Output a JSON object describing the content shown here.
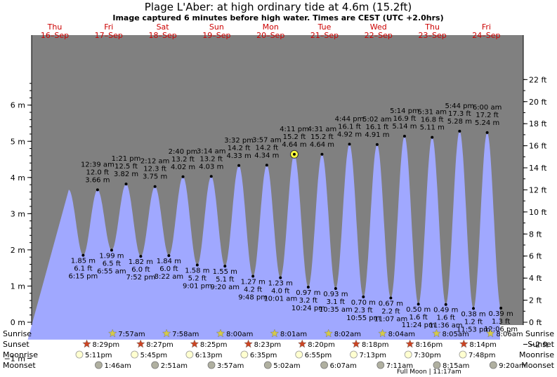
{
  "title": "Plage L'Aber: at high  ordinary tide at 4.6m (15.2ft)",
  "subtitle": "Image captured 6 minutes before high water. Times are CEST (UTC +2.0hrs)",
  "colors": {
    "day": "#ffffc0",
    "night": "#808080",
    "tide": "#a0a8ff",
    "day_label": "#cc0000",
    "now_marker": "#ffff40",
    "sun_star": "#d4c94a",
    "sunset_star": "#cc4422",
    "moon": "#ffffd0",
    "moonset": "#b0b0a0"
  },
  "chart_data": {
    "type": "area",
    "title": "Plage L'Aber: at high  ordinary tide at 4.6m (15.2ft)",
    "ylabel_left": "m",
    "ylabel_right": "ft",
    "ylim_m": [
      -1.2,
      6.8
    ],
    "yticks_m": [
      "−1 m",
      "0 m",
      "1 m",
      "2 m",
      "3 m",
      "4 m",
      "5 m",
      "6 m"
    ],
    "yticks_ft": [
      "−2 ft",
      "0 ft",
      "2 ft",
      "4 ft",
      "6 ft",
      "8 ft",
      "10 ft",
      "12 ft",
      "14 ft",
      "16 ft",
      "18 ft",
      "20 ft",
      "22 ft"
    ],
    "days": [
      {
        "dow": "Thu",
        "date": "16–Sep"
      },
      {
        "dow": "Fri",
        "date": "17–Sep"
      },
      {
        "dow": "Sat",
        "date": "18–Sep"
      },
      {
        "dow": "Sun",
        "date": "19–Sep"
      },
      {
        "dow": "Mon",
        "date": "20–Sep"
      },
      {
        "dow": "Tue",
        "date": "21–Sep"
      },
      {
        "dow": "Wed",
        "date": "22–Sep"
      },
      {
        "dow": "Thu",
        "date": "23–Sep"
      },
      {
        "dow": "Fri",
        "date": "24–Sep"
      }
    ],
    "tides": [
      {
        "kind": "low",
        "m": 1.85,
        "ft": "6.1 ft",
        "time": "6:15 pm",
        "label": "1.85 m"
      },
      {
        "kind": "high",
        "m": 3.66,
        "ft": "12.0 ft",
        "time": "12:39 am",
        "label": "3.66 m"
      },
      {
        "kind": "low",
        "m": 1.99,
        "ft": "6.5 ft",
        "time": "6:55 am",
        "label": "1.99 m"
      },
      {
        "kind": "high",
        "m": 3.82,
        "ft": "12.5 ft",
        "time": "1:21 pm",
        "label": "3.82 m"
      },
      {
        "kind": "low",
        "m": 1.82,
        "ft": "6.0 ft",
        "time": "7:52 pm",
        "label": "1.82 m"
      },
      {
        "kind": "high",
        "m": 3.75,
        "ft": "12.3 ft",
        "time": "2:12 am",
        "label": "3.75 m"
      },
      {
        "kind": "low",
        "m": 1.84,
        "ft": "6.0 ft",
        "time": "8:22 am",
        "label": "1.84 m"
      },
      {
        "kind": "high",
        "m": 4.02,
        "ft": "13.2 ft",
        "time": "2:40 pm",
        "label": "4.02 m"
      },
      {
        "kind": "low",
        "m": 1.58,
        "ft": "5.2 ft",
        "time": "9:01 pm",
        "label": "1.58 m"
      },
      {
        "kind": "high",
        "m": 4.03,
        "ft": "13.2 ft",
        "time": "3:14 am",
        "label": "4.03 m"
      },
      {
        "kind": "low",
        "m": 1.55,
        "ft": "5.1 ft",
        "time": "9:20 am",
        "label": "1.55 m"
      },
      {
        "kind": "high",
        "m": 4.33,
        "ft": "14.2 ft",
        "time": "3:32 pm",
        "label": "4.33 m"
      },
      {
        "kind": "low",
        "m": 1.27,
        "ft": "4.2 ft",
        "time": "9:48 pm",
        "label": "1.27 m"
      },
      {
        "kind": "high",
        "m": 4.34,
        "ft": "14.2 ft",
        "time": "3:57 am",
        "label": "4.34 m"
      },
      {
        "kind": "low",
        "m": 1.23,
        "ft": "4.0 ft",
        "time": "10:01 am",
        "label": "1.23 m"
      },
      {
        "kind": "high",
        "m": 4.64,
        "ft": "15.2 ft",
        "time": "4:11 pm",
        "label": "4.64 m"
      },
      {
        "kind": "low",
        "m": 0.97,
        "ft": "3.2 ft",
        "time": "10:24 pm",
        "label": "0.97 m"
      },
      {
        "kind": "high",
        "m": 4.64,
        "ft": "15.2 ft",
        "time": "4:31 am",
        "label": "4.64 m"
      },
      {
        "kind": "low",
        "m": 0.93,
        "ft": "3.1 ft",
        "time": "10:35 am",
        "label": "0.93 m"
      },
      {
        "kind": "high",
        "m": 4.92,
        "ft": "16.1 ft",
        "time": "4:44 pm",
        "label": "4.92 m"
      },
      {
        "kind": "low",
        "m": 0.7,
        "ft": "2.3 ft",
        "time": "10:55 pm",
        "label": "0.70 m"
      },
      {
        "kind": "high",
        "m": 4.91,
        "ft": "16.1 ft",
        "time": "5:02 am",
        "label": "4.91 m"
      },
      {
        "kind": "low",
        "m": 0.67,
        "ft": "2.2 ft",
        "time": "11:07 am",
        "label": "0.67 m"
      },
      {
        "kind": "high",
        "m": 5.14,
        "ft": "16.9 ft",
        "time": "5:14 pm",
        "label": "5.14 m"
      },
      {
        "kind": "low",
        "m": 0.5,
        "ft": "1.6 ft",
        "time": "11:24 pm",
        "label": "0.50 m"
      },
      {
        "kind": "high",
        "m": 5.11,
        "ft": "16.8 ft",
        "time": "5:31 am",
        "label": "5.11 m"
      },
      {
        "kind": "low",
        "m": 0.49,
        "ft": "1.6 ft",
        "time": "11:36 am",
        "label": "0.49 m"
      },
      {
        "kind": "high",
        "m": 5.28,
        "ft": "17.3 ft",
        "time": "5:44 pm",
        "label": "5.28 m"
      },
      {
        "kind": "low",
        "m": 0.38,
        "ft": "1.2 ft",
        "time": "11:53 pm",
        "label": "0.38 m"
      },
      {
        "kind": "high",
        "m": 5.24,
        "ft": "17.2 ft",
        "time": "6:00 am",
        "label": "5.24 m"
      },
      {
        "kind": "low",
        "m": 0.39,
        "ft": "1.3 ft",
        "time": "12:06 pm",
        "label": "0.39 m"
      }
    ],
    "now_marker_tide_index": 15
  },
  "rows": {
    "sunrise_label": "Sunrise",
    "sunset_label": "Sunset",
    "moonrise_label": "Moonrise",
    "moonset_label": "Moonset",
    "sunrise": [
      "7:57am",
      "7:58am",
      "8:00am",
      "8:01am",
      "8:02am",
      "8:04am",
      "8:05am",
      "8:06am"
    ],
    "sunset": [
      "8:29pm",
      "8:27pm",
      "8:25pm",
      "8:23pm",
      "8:20pm",
      "8:18pm",
      "8:16pm",
      "8:14pm"
    ],
    "moonrise": [
      "5:11pm",
      "5:45pm",
      "6:13pm",
      "6:35pm",
      "6:55pm",
      "7:13pm",
      "7:30pm",
      "7:48pm"
    ],
    "moonset": [
      "1:46am",
      "2:51am",
      "3:57am",
      "5:02am",
      "6:07am",
      "7:11am",
      "8:15am",
      "9:20am"
    ],
    "full_moon_note": "Full Moon | 11:17am"
  }
}
